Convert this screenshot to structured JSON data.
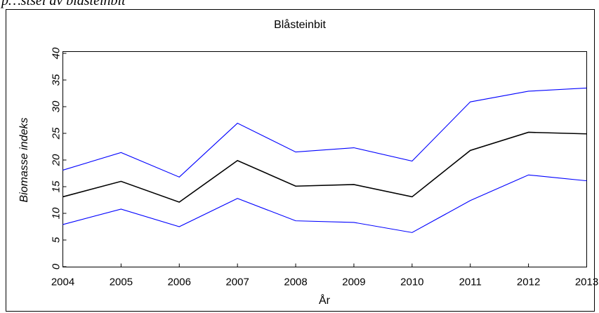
{
  "caption": "p…stsel av blåsteinbit",
  "chart_data": {
    "type": "line",
    "title": "Blåsteinbit",
    "xlabel": "År",
    "ylabel": "Biomasse indeks",
    "x": [
      2004,
      2005,
      2006,
      2007,
      2008,
      2009,
      2010,
      2011,
      2012,
      2013
    ],
    "xlim": [
      2004,
      2013
    ],
    "ylim": [
      0,
      40
    ],
    "yticks": [
      0,
      5,
      10,
      15,
      20,
      25,
      30,
      35,
      40
    ],
    "grid": false,
    "series": [
      {
        "role": "upper",
        "color": "#0000ff",
        "values": [
          18.1,
          21.4,
          16.8,
          26.9,
          21.5,
          22.3,
          19.8,
          30.9,
          32.9,
          33.5
        ]
      },
      {
        "role": "estimate",
        "color": "#000000",
        "values": [
          13.1,
          16.0,
          12.1,
          19.9,
          15.1,
          15.4,
          13.1,
          21.8,
          25.2,
          24.9
        ]
      },
      {
        "role": "lower",
        "color": "#0000ff",
        "values": [
          7.9,
          10.8,
          7.5,
          12.8,
          8.6,
          8.3,
          6.4,
          12.4,
          17.2,
          16.1
        ]
      }
    ]
  }
}
